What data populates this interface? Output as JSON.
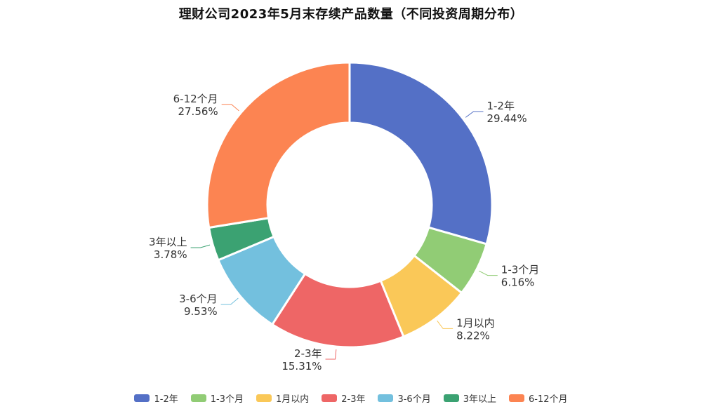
{
  "chart_data": {
    "type": "pie",
    "title": "理财公司2023年5月末存续产品数量（不同投资周期分布）",
    "categories": [
      "1-2年",
      "1-3个月",
      "1月以内",
      "2-3年",
      "3-6个月",
      "3年以上",
      "6-12个月"
    ],
    "values": [
      29.44,
      6.16,
      8.22,
      15.31,
      9.53,
      3.78,
      27.56
    ],
    "value_labels": [
      "29.44%",
      "6.16%",
      "8.22%",
      "15.31%",
      "9.53%",
      "3.78%",
      "27.56%"
    ],
    "unit": "%",
    "donut": true,
    "legend_position": "bottom-center",
    "colors": [
      "#5470c6",
      "#91cc75",
      "#fac858",
      "#ee6666",
      "#73c0de",
      "#3ba272",
      "#fc8452"
    ]
  }
}
